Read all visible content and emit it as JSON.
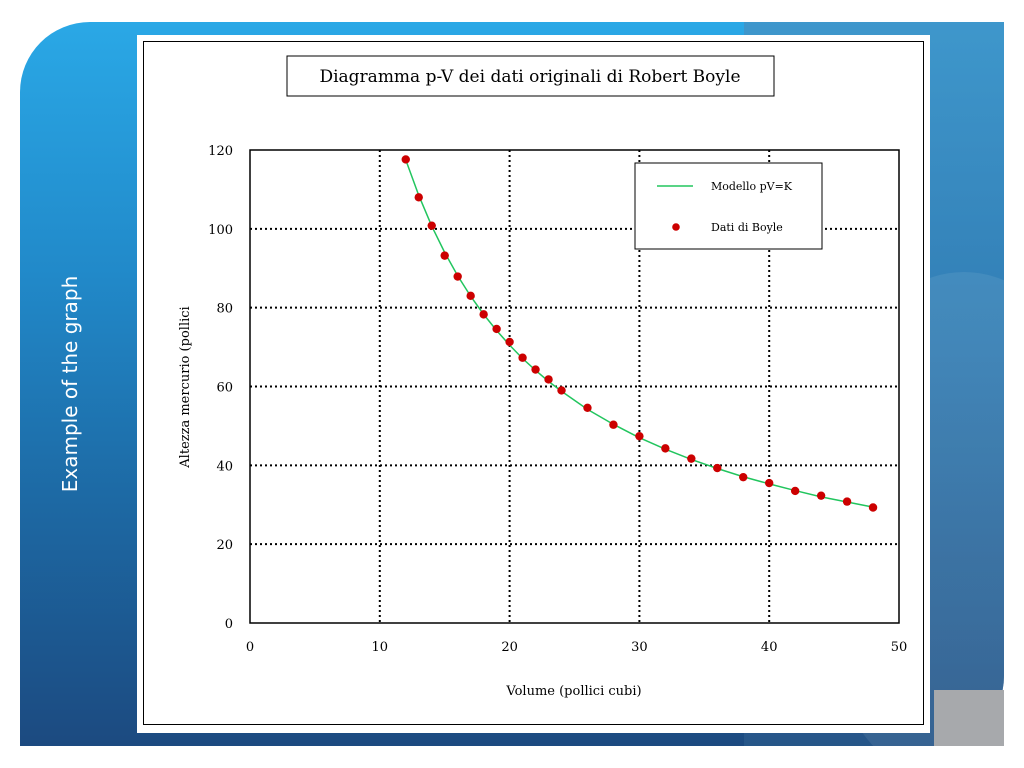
{
  "slide": {
    "side_label": "Example of the graph",
    "colors": {
      "background_top": "#2aa8e6",
      "background_bottom": "#1c4a80"
    }
  },
  "chart_data": {
    "type": "scatter",
    "title": "Diagramma p-V dei dati originali di Robert Boyle",
    "xlabel": "Volume (pollici cubi)",
    "ylabel": "Altezza mercurio (pollici",
    "xlim": [
      0,
      50
    ],
    "ylim": [
      0,
      120
    ],
    "x_ticks": [
      "0",
      "10",
      "20",
      "30",
      "40",
      "50"
    ],
    "y_ticks": [
      "0",
      "20",
      "40",
      "60",
      "80",
      "100",
      "120"
    ],
    "grid": true,
    "legend_position": "top-right",
    "series": [
      {
        "name": "Modello pV=K",
        "kind": "line",
        "color": "#22c55e",
        "x": [
          12,
          13,
          14,
          15,
          16,
          17,
          18,
          19,
          20,
          21,
          22,
          23,
          24,
          26,
          28,
          30,
          32,
          34,
          36,
          38,
          40,
          42,
          44,
          46,
          48
        ],
        "y": [
          117.5,
          108.5,
          100.7,
          94.0,
          88.1,
          82.9,
          78.3,
          74.2,
          70.5,
          67.1,
          64.1,
          61.3,
          58.8,
          54.2,
          50.4,
          47.0,
          44.1,
          41.5,
          39.2,
          37.1,
          35.3,
          33.6,
          32.0,
          30.7,
          29.4
        ]
      },
      {
        "name": "Dati di Boyle",
        "kind": "scatter",
        "color": "#cc0000",
        "x": [
          12,
          13,
          14,
          15,
          16,
          17,
          18,
          19,
          20,
          21,
          22,
          23,
          24,
          26,
          28,
          30,
          32,
          34,
          36,
          38,
          40,
          42,
          44,
          46,
          48
        ],
        "y": [
          117.6,
          108,
          100.8,
          93.2,
          87.9,
          83,
          78.3,
          74.6,
          71.3,
          67.3,
          64.3,
          61.8,
          59,
          54.6,
          50.3,
          47.4,
          44.3,
          41.7,
          39.3,
          37,
          35.5,
          33.5,
          32.3,
          30.8,
          29.3
        ]
      }
    ]
  }
}
